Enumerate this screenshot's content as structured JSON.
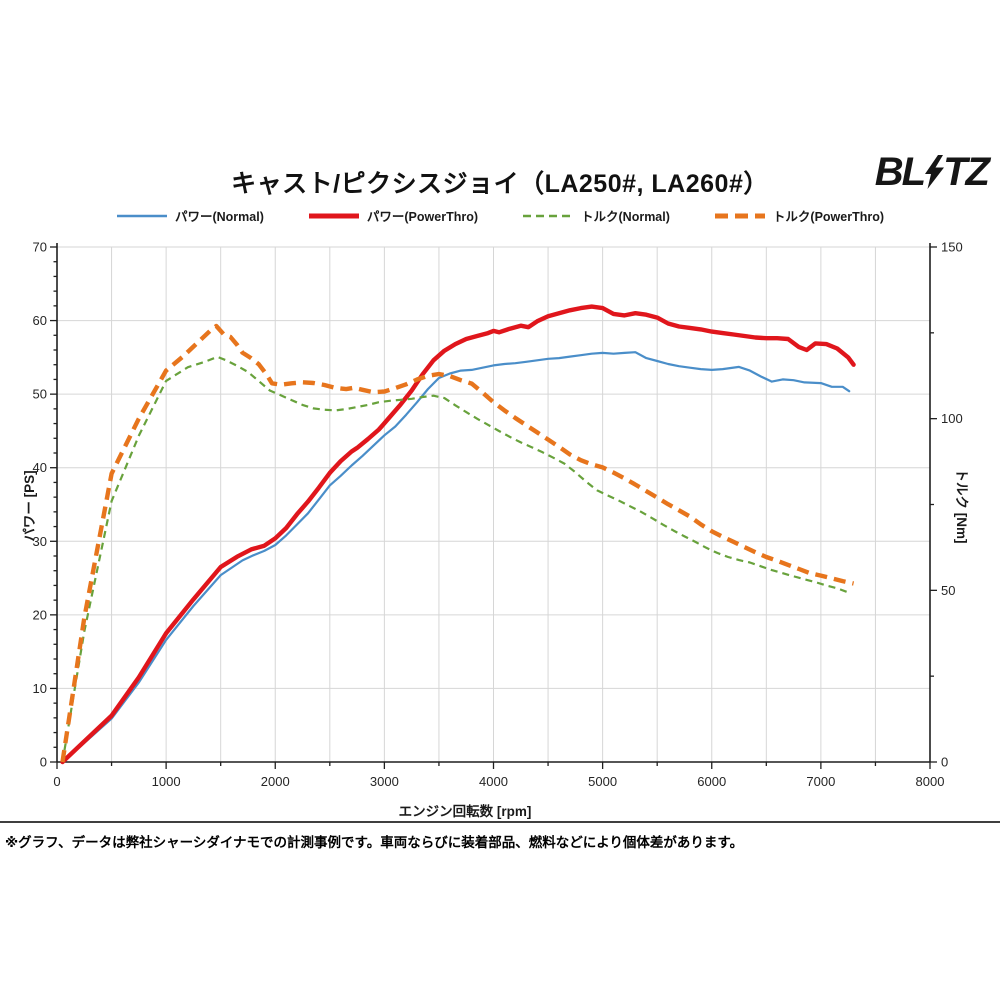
{
  "header": {
    "title": "キャスト/ピクシスジョイ（LA250#, LA260#）",
    "brand": {
      "name": "BLITZ",
      "part1": "BL",
      "part2": "TZ"
    }
  },
  "footer": {
    "note": "※グラフ、データは弊社シャーシダイナモでの計測事例です。車両ならびに装着部品、燃料などにより個体差があります。"
  },
  "colors": {
    "power_normal": "#4A8EC9",
    "power_powerthro": "#E0161C",
    "torque_normal": "#68A23C",
    "torque_powerthro": "#E7751D",
    "grid": "#D6D6D6",
    "axis": "#1F1F1F"
  },
  "chart_data": {
    "type": "line",
    "title": "キャスト/ピクシスジョイ（LA250#, LA260#）",
    "xlabel": "エンジン回転数 [rpm]",
    "ylabel_left": "パワー [PS]",
    "ylabel_right": "トルク [Nm]",
    "x_axis": {
      "min": 0,
      "max": 8000,
      "major_tick": 1000,
      "minor_tick": 500
    },
    "y_left": {
      "min": 0,
      "max": 70,
      "major_tick": 10,
      "minor_tick": 2
    },
    "y_right": {
      "min": 0,
      "max": 150,
      "major_tick": 50,
      "minor_tick": 25
    },
    "grid": {
      "x_every": 500,
      "y_left_every": 10,
      "on": true
    },
    "legend": [
      {
        "label": "パワー(Normal)",
        "color": "#4A8EC9",
        "line_width": 2.5,
        "dash": null
      },
      {
        "label": "パワー(PowerThro)",
        "color": "#E0161C",
        "line_width": 5,
        "dash": null
      },
      {
        "label": "トルク(Normal)",
        "color": "#68A23C",
        "line_width": 2.5,
        "dash": [
          8,
          5
        ]
      },
      {
        "label": "トルク(PowerThro)",
        "color": "#E7751D",
        "line_width": 5,
        "dash": [
          13,
          7
        ]
      }
    ],
    "series": [
      {
        "name": "パワー(Normal)",
        "axis": "left",
        "unit": "PS",
        "color": "#4A8EC9",
        "width": 2.2,
        "dash": null,
        "points": [
          [
            50,
            0
          ],
          [
            250,
            2.6
          ],
          [
            500,
            5.9
          ],
          [
            750,
            10.8
          ],
          [
            1000,
            16.6
          ],
          [
            1250,
            21.2
          ],
          [
            1500,
            25.4
          ],
          [
            1700,
            27.4
          ],
          [
            1800,
            28.1
          ],
          [
            1900,
            28.7
          ],
          [
            2000,
            29.5
          ],
          [
            2100,
            30.8
          ],
          [
            2200,
            32.3
          ],
          [
            2300,
            33.8
          ],
          [
            2400,
            35.7
          ],
          [
            2500,
            37.6
          ],
          [
            2600,
            38.9
          ],
          [
            2700,
            40.3
          ],
          [
            2800,
            41.6
          ],
          [
            2900,
            43.0
          ],
          [
            3000,
            44.4
          ],
          [
            3100,
            45.6
          ],
          [
            3200,
            47.2
          ],
          [
            3300,
            48.9
          ],
          [
            3400,
            50.7
          ],
          [
            3500,
            52.2
          ],
          [
            3600,
            52.8
          ],
          [
            3700,
            53.2
          ],
          [
            3800,
            53.3
          ],
          [
            3900,
            53.6
          ],
          [
            4000,
            53.9
          ],
          [
            4100,
            54.1
          ],
          [
            4200,
            54.2
          ],
          [
            4300,
            54.4
          ],
          [
            4400,
            54.6
          ],
          [
            4500,
            54.8
          ],
          [
            4600,
            54.9
          ],
          [
            4700,
            55.1
          ],
          [
            4800,
            55.3
          ],
          [
            4900,
            55.5
          ],
          [
            5000,
            55.6
          ],
          [
            5100,
            55.5
          ],
          [
            5200,
            55.6
          ],
          [
            5300,
            55.7
          ],
          [
            5400,
            54.9
          ],
          [
            5500,
            54.5
          ],
          [
            5600,
            54.1
          ],
          [
            5700,
            53.8
          ],
          [
            5800,
            53.6
          ],
          [
            5900,
            53.4
          ],
          [
            6000,
            53.3
          ],
          [
            6100,
            53.4
          ],
          [
            6250,
            53.7
          ],
          [
            6350,
            53.2
          ],
          [
            6450,
            52.4
          ],
          [
            6550,
            51.7
          ],
          [
            6650,
            52.0
          ],
          [
            6750,
            51.9
          ],
          [
            6850,
            51.6
          ],
          [
            7000,
            51.5
          ],
          [
            7100,
            51.0
          ],
          [
            7200,
            51.0
          ],
          [
            7260,
            50.4
          ]
        ]
      },
      {
        "name": "パワー(PowerThro)",
        "axis": "left",
        "unit": "PS",
        "color": "#E0161C",
        "width": 4.4,
        "dash": null,
        "points": [
          [
            50,
            0
          ],
          [
            250,
            2.8
          ],
          [
            500,
            6.3
          ],
          [
            750,
            11.5
          ],
          [
            1000,
            17.5
          ],
          [
            1250,
            22.1
          ],
          [
            1500,
            26.5
          ],
          [
            1650,
            27.9
          ],
          [
            1780,
            28.9
          ],
          [
            1900,
            29.4
          ],
          [
            2000,
            30.4
          ],
          [
            2100,
            31.8
          ],
          [
            2200,
            33.7
          ],
          [
            2300,
            35.4
          ],
          [
            2400,
            37.3
          ],
          [
            2500,
            39.3
          ],
          [
            2600,
            40.9
          ],
          [
            2700,
            42.2
          ],
          [
            2750,
            42.7
          ],
          [
            2850,
            43.9
          ],
          [
            2950,
            45.2
          ],
          [
            3050,
            46.9
          ],
          [
            3150,
            48.6
          ],
          [
            3250,
            50.5
          ],
          [
            3350,
            52.7
          ],
          [
            3450,
            54.6
          ],
          [
            3550,
            55.9
          ],
          [
            3650,
            56.8
          ],
          [
            3750,
            57.5
          ],
          [
            3850,
            57.9
          ],
          [
            3950,
            58.3
          ],
          [
            4000,
            58.6
          ],
          [
            4050,
            58.4
          ],
          [
            4150,
            58.9
          ],
          [
            4250,
            59.3
          ],
          [
            4320,
            59.1
          ],
          [
            4400,
            59.9
          ],
          [
            4500,
            60.6
          ],
          [
            4600,
            61.0
          ],
          [
            4700,
            61.4
          ],
          [
            4800,
            61.7
          ],
          [
            4900,
            61.9
          ],
          [
            5000,
            61.7
          ],
          [
            5100,
            60.9
          ],
          [
            5200,
            60.7
          ],
          [
            5300,
            61.0
          ],
          [
            5400,
            60.8
          ],
          [
            5500,
            60.4
          ],
          [
            5600,
            59.6
          ],
          [
            5700,
            59.2
          ],
          [
            5800,
            59.0
          ],
          [
            5900,
            58.8
          ],
          [
            6000,
            58.5
          ],
          [
            6100,
            58.3
          ],
          [
            6200,
            58.1
          ],
          [
            6300,
            57.9
          ],
          [
            6400,
            57.7
          ],
          [
            6500,
            57.6
          ],
          [
            6600,
            57.6
          ],
          [
            6700,
            57.5
          ],
          [
            6800,
            56.4
          ],
          [
            6870,
            56.0
          ],
          [
            6950,
            56.9
          ],
          [
            7050,
            56.8
          ],
          [
            7150,
            56.2
          ],
          [
            7250,
            55.0
          ],
          [
            7300,
            54.0
          ]
        ]
      },
      {
        "name": "トルク(Normal)",
        "axis": "right",
        "unit": "Nm",
        "color": "#68A23C",
        "width": 2.2,
        "dash": [
          7,
          5
        ],
        "points": [
          [
            50,
            0
          ],
          [
            250,
            38
          ],
          [
            500,
            76
          ],
          [
            750,
            95
          ],
          [
            1000,
            111
          ],
          [
            1200,
            115
          ],
          [
            1350,
            116.5
          ],
          [
            1470,
            118
          ],
          [
            1550,
            117
          ],
          [
            1650,
            115.4
          ],
          [
            1750,
            113.6
          ],
          [
            1850,
            110.9
          ],
          [
            1950,
            108.2
          ],
          [
            2050,
            106.8
          ],
          [
            2150,
            105.4
          ],
          [
            2250,
            104.0
          ],
          [
            2350,
            103.0
          ],
          [
            2450,
            102.6
          ],
          [
            2550,
            102.4
          ],
          [
            2650,
            102.8
          ],
          [
            2750,
            103.4
          ],
          [
            2850,
            104.0
          ],
          [
            2950,
            104.8
          ],
          [
            3050,
            105.2
          ],
          [
            3150,
            105.5
          ],
          [
            3250,
            105.8
          ],
          [
            3350,
            106.3
          ],
          [
            3450,
            106.7
          ],
          [
            3550,
            106.0
          ],
          [
            3650,
            103.9
          ],
          [
            3750,
            101.9
          ],
          [
            3850,
            100.0
          ],
          [
            3950,
            98.2
          ],
          [
            4050,
            96.4
          ],
          [
            4150,
            94.7
          ],
          [
            4250,
            93.1
          ],
          [
            4350,
            91.7
          ],
          [
            4450,
            90.2
          ],
          [
            4550,
            88.6
          ],
          [
            4650,
            86.9
          ],
          [
            4750,
            84.4
          ],
          [
            4850,
            81.6
          ],
          [
            4950,
            79.1
          ],
          [
            5050,
            77.6
          ],
          [
            5150,
            76.1
          ],
          [
            5250,
            74.5
          ],
          [
            5350,
            72.9
          ],
          [
            5450,
            71.1
          ],
          [
            5550,
            69.2
          ],
          [
            5650,
            67.4
          ],
          [
            5750,
            65.7
          ],
          [
            5850,
            64.1
          ],
          [
            5950,
            62.4
          ],
          [
            6050,
            60.9
          ],
          [
            6150,
            59.7
          ],
          [
            6250,
            58.8
          ],
          [
            6350,
            58.1
          ],
          [
            6450,
            57.0
          ],
          [
            6550,
            55.9
          ],
          [
            6650,
            55.0
          ],
          [
            6750,
            54.1
          ],
          [
            6850,
            53.2
          ],
          [
            6950,
            52.4
          ],
          [
            7050,
            51.4
          ],
          [
            7150,
            50.6
          ],
          [
            7240,
            49.5
          ]
        ]
      },
      {
        "name": "トルク(PowerThro)",
        "axis": "right",
        "unit": "Nm",
        "color": "#E7751D",
        "width": 4.4,
        "dash": [
          12,
          7
        ],
        "points": [
          [
            50,
            0
          ],
          [
            250,
            42
          ],
          [
            500,
            84
          ],
          [
            750,
            100
          ],
          [
            1000,
            114
          ],
          [
            1150,
            118
          ],
          [
            1300,
            122.5
          ],
          [
            1400,
            125.5
          ],
          [
            1460,
            127
          ],
          [
            1530,
            124.5
          ],
          [
            1590,
            123.8
          ],
          [
            1650,
            121.5
          ],
          [
            1700,
            119.2
          ],
          [
            1780,
            117.6
          ],
          [
            1850,
            115.8
          ],
          [
            1920,
            112.9
          ],
          [
            1970,
            110.3
          ],
          [
            2050,
            109.9
          ],
          [
            2150,
            110.3
          ],
          [
            2250,
            110.6
          ],
          [
            2350,
            110.4
          ],
          [
            2450,
            109.8
          ],
          [
            2550,
            109.0
          ],
          [
            2650,
            108.6
          ],
          [
            2720,
            109.0
          ],
          [
            2800,
            108.4
          ],
          [
            2900,
            107.7
          ],
          [
            3000,
            107.9
          ],
          [
            3100,
            108.9
          ],
          [
            3200,
            110.0
          ],
          [
            3300,
            111.4
          ],
          [
            3400,
            112.5
          ],
          [
            3500,
            113.0
          ],
          [
            3600,
            112.4
          ],
          [
            3700,
            111.2
          ],
          [
            3800,
            110.2
          ],
          [
            3900,
            107.6
          ],
          [
            4000,
            104.8
          ],
          [
            4100,
            102.4
          ],
          [
            4200,
            100.2
          ],
          [
            4300,
            98.1
          ],
          [
            4400,
            96.0
          ],
          [
            4500,
            93.9
          ],
          [
            4600,
            91.8
          ],
          [
            4700,
            89.6
          ],
          [
            4800,
            87.9
          ],
          [
            4900,
            86.7
          ],
          [
            5000,
            85.8
          ],
          [
            5100,
            84.3
          ],
          [
            5200,
            82.6
          ],
          [
            5300,
            80.8
          ],
          [
            5400,
            78.9
          ],
          [
            5500,
            77.0
          ],
          [
            5600,
            75.1
          ],
          [
            5700,
            73.3
          ],
          [
            5800,
            71.5
          ],
          [
            5900,
            69.2
          ],
          [
            6000,
            67.2
          ],
          [
            6100,
            65.6
          ],
          [
            6200,
            64.1
          ],
          [
            6300,
            62.6
          ],
          [
            6400,
            61.1
          ],
          [
            6500,
            59.7
          ],
          [
            6600,
            58.6
          ],
          [
            6700,
            57.4
          ],
          [
            6800,
            56.2
          ],
          [
            6900,
            55.0
          ],
          [
            7000,
            54.3
          ],
          [
            7100,
            53.5
          ],
          [
            7200,
            52.7
          ],
          [
            7300,
            52.0
          ]
        ]
      }
    ]
  }
}
